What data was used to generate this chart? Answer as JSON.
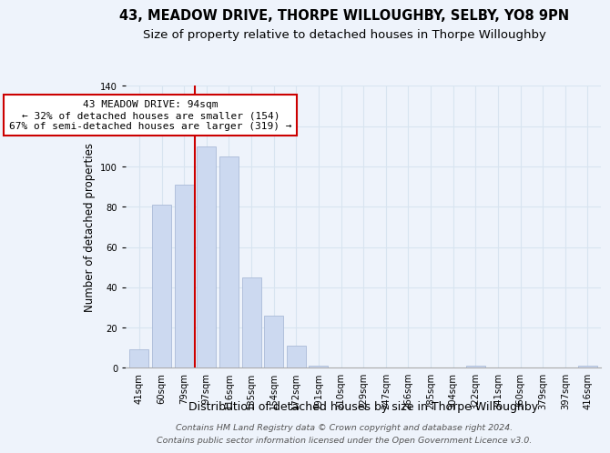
{
  "title": "43, MEADOW DRIVE, THORPE WILLOUGHBY, SELBY, YO8 9PN",
  "subtitle": "Size of property relative to detached houses in Thorpe Willoughby",
  "xlabel": "Distribution of detached houses by size in Thorpe Willoughby",
  "ylabel": "Number of detached properties",
  "bar_labels": [
    "41sqm",
    "60sqm",
    "79sqm",
    "97sqm",
    "116sqm",
    "135sqm",
    "154sqm",
    "172sqm",
    "191sqm",
    "210sqm",
    "229sqm",
    "247sqm",
    "266sqm",
    "285sqm",
    "304sqm",
    "322sqm",
    "341sqm",
    "360sqm",
    "379sqm",
    "397sqm",
    "416sqm"
  ],
  "bar_values": [
    9,
    81,
    91,
    110,
    105,
    45,
    26,
    11,
    1,
    0,
    0,
    0,
    0,
    0,
    0,
    1,
    0,
    0,
    0,
    0,
    1
  ],
  "bar_color": "#ccd9f0",
  "bar_edge_color": "#aabbd8",
  "vline_color": "#cc0000",
  "vline_x_index": 3,
  "annotation_title": "43 MEADOW DRIVE: 94sqm",
  "annotation_line1": "← 32% of detached houses are smaller (154)",
  "annotation_line2": "67% of semi-detached houses are larger (319) →",
  "annotation_box_facecolor": "#ffffff",
  "annotation_box_edgecolor": "#cc0000",
  "ylim": [
    0,
    140
  ],
  "yticks": [
    0,
    20,
    40,
    60,
    80,
    100,
    120,
    140
  ],
  "footer_line1": "Contains HM Land Registry data © Crown copyright and database right 2024.",
  "footer_line2": "Contains public sector information licensed under the Open Government Licence v3.0.",
  "bg_color": "#eef3fb",
  "title_fontsize": 10.5,
  "subtitle_fontsize": 9.5,
  "ylabel_fontsize": 8.5,
  "xlabel_fontsize": 9,
  "tick_fontsize": 7.2,
  "annotation_fontsize": 8,
  "footer_fontsize": 6.8,
  "grid_color": "#d8e4f0"
}
